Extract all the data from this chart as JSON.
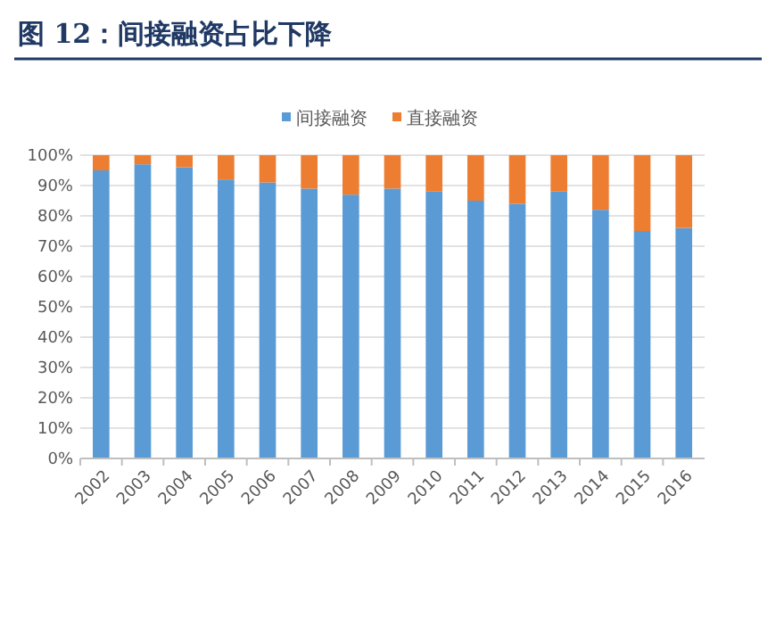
{
  "chart_data": {
    "type": "bar",
    "title": "图 12：间接融资占比下降",
    "stacked": true,
    "categories": [
      "2002",
      "2003",
      "2004",
      "2005",
      "2006",
      "2007",
      "2008",
      "2009",
      "2010",
      "2011",
      "2012",
      "2013",
      "2014",
      "2015",
      "2016"
    ],
    "series": [
      {
        "name": "间接融资",
        "color": "#5b9bd5",
        "values": [
          95,
          97,
          96,
          92,
          91,
          89,
          87,
          89,
          88,
          85,
          84,
          88,
          82,
          75,
          76
        ]
      },
      {
        "name": "直接融资",
        "color": "#ed7d31",
        "values": [
          5,
          3,
          4,
          8,
          9,
          11,
          13,
          11,
          12,
          15,
          16,
          12,
          18,
          25,
          24
        ]
      }
    ],
    "ylim": [
      0,
      100
    ],
    "yticks": [
      {
        "value": 0,
        "label": "0%"
      },
      {
        "value": 10,
        "label": "10%"
      },
      {
        "value": 20,
        "label": "20%"
      },
      {
        "value": 30,
        "label": "30%"
      },
      {
        "value": 40,
        "label": "40%"
      },
      {
        "value": 50,
        "label": "50%"
      },
      {
        "value": 60,
        "label": "60%"
      },
      {
        "value": 70,
        "label": "70%"
      },
      {
        "value": 80,
        "label": "80%"
      },
      {
        "value": 90,
        "label": "90%"
      },
      {
        "value": 100,
        "label": "100%"
      }
    ],
    "grid": "y",
    "legend": "top"
  }
}
